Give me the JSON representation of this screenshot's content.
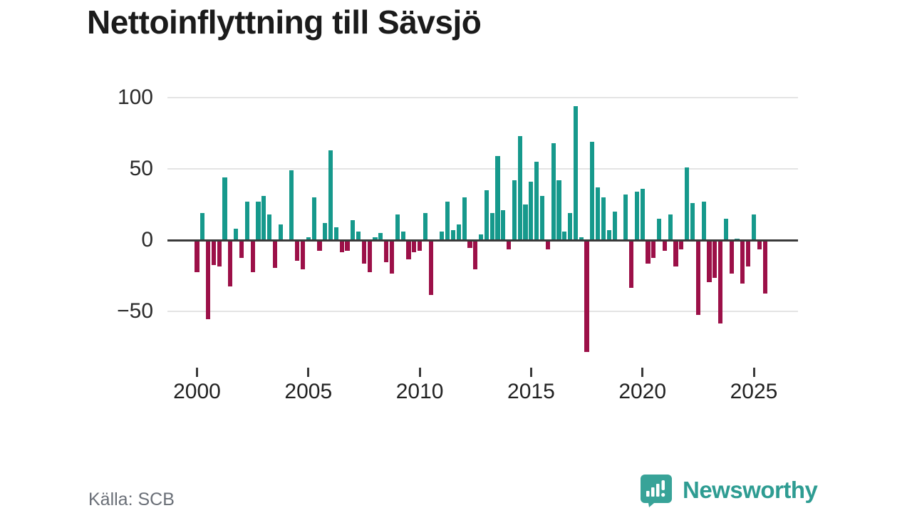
{
  "title": "Nettoinflyttning till Sävsjö",
  "source": "Källa: SCB",
  "brand": {
    "name": "Newsworthy",
    "icon": "bar-chart-speech-bubble-icon"
  },
  "colors": {
    "positive_bar": "#16998C",
    "negative_bar": "#9C1048",
    "zero_axis": "#3a3a3a",
    "gridline": "#e4e4e4",
    "brand_teal": "#2E9C92",
    "source_gray": "#6a6f77"
  },
  "chart_data": {
    "type": "bar",
    "title": "Nettoinflyttning till Sävsjö",
    "frequency": "quarterly",
    "x_start": {
      "year": 2000,
      "quarter": 1
    },
    "x_end": {
      "year": 2025,
      "quarter": 3
    },
    "x_tick_years": [
      2000,
      2005,
      2010,
      2015,
      2020,
      2025
    ],
    "y_ticks": [
      100,
      50,
      0,
      -50
    ],
    "y_tick_labels": [
      "100",
      "50",
      "0",
      "−50"
    ],
    "ylim": [
      -82,
      100
    ],
    "grid": true,
    "legend": "none",
    "series": [
      {
        "name": "Nettoinflyttning",
        "values": [
          -22,
          19,
          -55,
          -17,
          -18,
          44,
          -32,
          8,
          -12,
          27,
          -22,
          27,
          31,
          18,
          -19,
          11,
          0,
          49,
          -14,
          -20,
          2,
          30,
          -7,
          12,
          63,
          9,
          -8,
          -7,
          14,
          6,
          -16,
          -22,
          2,
          5,
          -15,
          -23,
          18,
          6,
          -13,
          -8,
          -7,
          19,
          -38,
          0,
          6,
          27,
          7,
          11,
          30,
          -5,
          -20,
          4,
          35,
          19,
          59,
          21,
          -6,
          42,
          73,
          25,
          41,
          55,
          31,
          -6,
          68,
          42,
          6,
          19,
          94,
          2,
          -78,
          69,
          37,
          30,
          7,
          20,
          0,
          32,
          -33,
          34,
          36,
          -16,
          -12,
          15,
          -7,
          18,
          -18,
          -6,
          51,
          26,
          -52,
          27,
          -29,
          -26,
          -58,
          15,
          -23,
          1,
          -30,
          -18,
          18,
          -6,
          -37
        ]
      }
    ]
  }
}
